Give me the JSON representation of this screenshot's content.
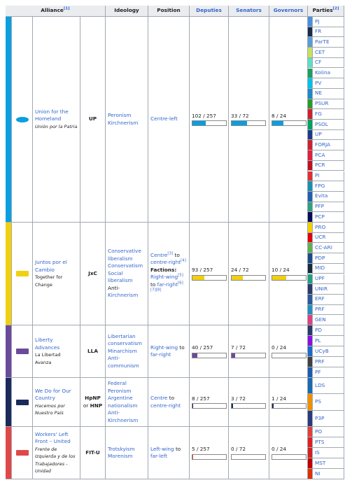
{
  "header": {
    "alliance": "Alliance",
    "alliance_note": "[1]",
    "ideology": "Ideology",
    "position": "Position",
    "deputies": "Deputies",
    "senators": "Senators",
    "governors": "Governors",
    "parties": "Parties",
    "parties_note": "[2]"
  },
  "alliances": [
    {
      "color": "#0a9fe0",
      "name": "Union for the Homeland",
      "native": {
        "text": "Unión por la Patria",
        "style": "italic"
      },
      "abbr": [
        {
          "text": "UP",
          "style": "bold"
        }
      ],
      "ideology": [
        [
          {
            "text": "Peronism",
            "style": "link"
          }
        ],
        [
          {
            "text": "Kirchnerism",
            "style": "link"
          }
        ]
      ],
      "position": [
        [
          {
            "text": "Centre-left",
            "style": "link"
          }
        ]
      ],
      "deputies": {
        "label": "102 / 257",
        "seats": 102,
        "total": 257
      },
      "senators": {
        "label": "33 / 72",
        "seats": 33,
        "total": 72
      },
      "governors": {
        "label": "8 / 24",
        "seats": 8,
        "total": 24
      },
      "parties": [
        {
          "name": "PJ",
          "color": "#4a90d9"
        },
        {
          "name": "FR",
          "color": "#1a2a4a"
        },
        {
          "name": "ParTE",
          "color": "#5a9bd5"
        },
        {
          "name": "CET",
          "color": "#c8e05a"
        },
        {
          "name": "CF",
          "color": "#5ee0c0"
        },
        {
          "name": "Kolina",
          "color": "#1aa060"
        },
        {
          "name": "PV",
          "color": "#00c0e8"
        },
        {
          "name": "NE",
          "color": "#1a8ac8"
        },
        {
          "name": "PSUR",
          "color": "#2a9a2a"
        },
        {
          "name": "FG",
          "color": "#d02030"
        },
        {
          "name": "PSOL",
          "color": "#00a060"
        },
        {
          "name": "UP",
          "color": "#1a3a8a"
        },
        {
          "name": "FORJA",
          "color": "#d02030"
        },
        {
          "name": "PCA",
          "color": "#e02040"
        },
        {
          "name": "PCR",
          "color": "#c01020"
        },
        {
          "name": "PI",
          "color": "#e03030"
        },
        {
          "name": "FPG",
          "color": "#1a90b0"
        },
        {
          "name": "Evita",
          "color": "#2060b0"
        },
        {
          "name": "PFP",
          "color": "#30a080"
        },
        {
          "name": "PCP",
          "color": "#0a0a5a"
        }
      ]
    },
    {
      "color": "#f0d010",
      "name": "Juntos por el Cambio",
      "native": {
        "text": "Together for Change",
        "style": "plain"
      },
      "abbr": [
        {
          "text": "JxC",
          "style": "bold"
        }
      ],
      "ideology": [
        [
          {
            "text": "Conservative liberalism",
            "style": "link"
          }
        ],
        [
          {
            "text": "Conservatism",
            "style": "link"
          }
        ],
        [
          {
            "text": "Social liberalism",
            "style": "link"
          }
        ],
        [
          {
            "text": "Anti-",
            "style": "plain"
          },
          {
            "text": "Kirchnerism",
            "style": "link"
          }
        ]
      ],
      "position": [
        [
          {
            "text": "Centre",
            "style": "link"
          },
          {
            "text": "[3]",
            "style": "sup"
          },
          {
            "text": " to ",
            "style": "plain"
          },
          {
            "text": "centre-right",
            "style": "link"
          },
          {
            "text": "[4]",
            "style": "sup"
          }
        ],
        [
          {
            "text": "Factions:",
            "style": "bold"
          }
        ],
        [
          {
            "text": "Right-wing",
            "style": "link"
          },
          {
            "text": "[5]",
            "style": "sup"
          },
          {
            "text": " to ",
            "style": "plain"
          },
          {
            "text": "far-right",
            "style": "link"
          },
          {
            "text": "[6]",
            "style": "sup"
          }
        ],
        [
          {
            "text": "[7][8]",
            "style": "sup"
          }
        ]
      ],
      "deputies": {
        "label": "93 / 257",
        "seats": 93,
        "total": 257
      },
      "senators": {
        "label": "24 / 72",
        "seats": 24,
        "total": 72
      },
      "governors": {
        "label": "10 / 24",
        "seats": 10,
        "total": 24
      },
      "parties": [
        {
          "name": "PRO",
          "color": "#f0d000"
        },
        {
          "name": "UCR",
          "color": "#e00010"
        },
        {
          "name": "CC-ARI",
          "color": "#60b050"
        },
        {
          "name": "PDP",
          "color": "#1a4a8a"
        },
        {
          "name": "MID",
          "color": "#1a2a3a"
        },
        {
          "name": "UPF",
          "color": "#20a080"
        },
        {
          "name": "UNIR",
          "color": "#2a3a6a"
        },
        {
          "name": "ERF",
          "color": "#2a5a9a"
        },
        {
          "name": "PRF",
          "color": "#2090c0"
        },
        {
          "name": "GEN",
          "color": "#e04080"
        }
      ]
    },
    {
      "color": "#6a4a9a",
      "name": "Liberty Advances",
      "native": {
        "text": "La Libertad Avanza",
        "style": "plain"
      },
      "abbr": [
        {
          "text": "LLA",
          "style": "bold"
        }
      ],
      "ideology": [
        [
          {
            "text": "Libertarian conservatism",
            "style": "link"
          }
        ],
        [
          {
            "text": "Minarchism",
            "style": "link"
          }
        ],
        [
          {
            "text": "Anti-communism",
            "style": "link"
          }
        ]
      ],
      "position": [
        [
          {
            "text": "Right-wing",
            "style": "link"
          },
          {
            "text": " to ",
            "style": "plain"
          },
          {
            "text": "far-right",
            "style": "link"
          }
        ]
      ],
      "deputies": {
        "label": "40 / 257",
        "seats": 40,
        "total": 257
      },
      "senators": {
        "label": "7 / 72",
        "seats": 7,
        "total": 72
      },
      "governors": {
        "label": "0 / 24",
        "seats": 0,
        "total": 24
      },
      "parties": [
        {
          "name": "PD",
          "color": "#2a3a6a"
        },
        {
          "name": "PL",
          "color": "#8a10e0"
        },
        {
          "name": "UCyB",
          "color": "#1a6ac8"
        },
        {
          "name": "PRF",
          "color": "#404040"
        },
        {
          "name": "PF",
          "color": "#1a5ab0"
        }
      ]
    },
    {
      "color": "#1a2a5a",
      "name": "We Do for Our Country",
      "native": {
        "text": "Hacemos por Nuestro País",
        "style": "italic"
      },
      "abbr": [
        {
          "text": "HpNP",
          "style": "bold"
        },
        {
          "text": " or ",
          "style": "plain"
        },
        {
          "text": "HNP",
          "style": "bold"
        }
      ],
      "ideology": [
        [
          {
            "text": "Federal Peronism",
            "style": "link"
          }
        ],
        [
          {
            "text": "Argentine nationalism",
            "style": "link"
          }
        ],
        [
          {
            "text": "Anti-Kirchnerism",
            "style": "link"
          }
        ]
      ],
      "position": [
        [
          {
            "text": "Centre",
            "style": "link"
          },
          {
            "text": " to ",
            "style": "plain"
          },
          {
            "text": "centre-right",
            "style": "link"
          }
        ]
      ],
      "deputies": {
        "label": "8 / 257",
        "seats": 8,
        "total": 257
      },
      "senators": {
        "label": "3 / 72",
        "seats": 3,
        "total": 72
      },
      "governors": {
        "label": "1 / 24",
        "seats": 1,
        "total": 24
      },
      "parties": [
        {
          "name": "LDS",
          "color": "#1a6ab0"
        },
        {
          "name": "PS",
          "color": "#f09000"
        },
        {
          "name": "P3P",
          "color": "#2a3a7a"
        }
      ]
    },
    {
      "color": "#e04848",
      "name": "Workers' Left Front – United",
      "native": {
        "text": "Frente de Izquierda y de los Trabajadores - Unidad",
        "style": "italic"
      },
      "abbr": [
        {
          "text": "FIT-U",
          "style": "bold"
        }
      ],
      "ideology": [
        [
          {
            "text": "Trotskyism",
            "style": "link"
          }
        ],
        [
          {
            "text": "Morenism",
            "style": "link"
          }
        ]
      ],
      "position": [
        [
          {
            "text": "Left-wing",
            "style": "link"
          },
          {
            "text": " to ",
            "style": "plain"
          },
          {
            "text": "far-left",
            "style": "link"
          }
        ]
      ],
      "deputies": {
        "label": "5 / 257",
        "seats": 5,
        "total": 257
      },
      "senators": {
        "label": "0 / 72",
        "seats": 0,
        "total": 72
      },
      "governors": {
        "label": "0 / 24",
        "seats": 0,
        "total": 24
      },
      "parties": [
        {
          "name": "PO",
          "color": "#e04040"
        },
        {
          "name": "PTS",
          "color": "#e02020"
        },
        {
          "name": "IS",
          "color": "#d02020"
        },
        {
          "name": "MST",
          "color": "#c00000"
        },
        {
          "name": "NI",
          "color": "#e03000"
        }
      ]
    }
  ]
}
